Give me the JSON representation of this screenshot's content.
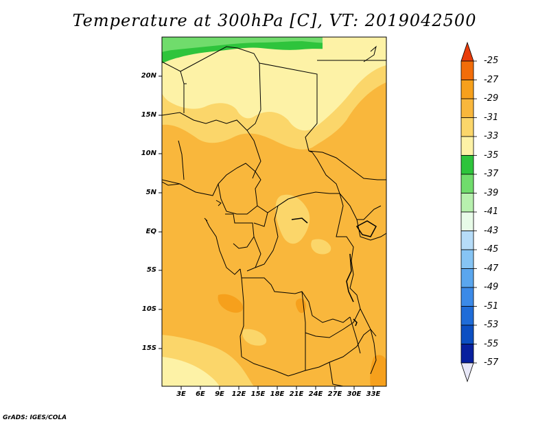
{
  "title": "Temperature at 300hPa [C], VT: 2019042500",
  "credit": "GrADS: IGES/COLA",
  "map": {
    "lat_labels": [
      "20N",
      "15N",
      "10N",
      "5N",
      "EQ",
      "5S",
      "10S",
      "15S"
    ],
    "lon_labels": [
      "3E",
      "6E",
      "9E",
      "12E",
      "15E",
      "18E",
      "21E",
      "24E",
      "27E",
      "30E",
      "33E"
    ]
  },
  "colorbar": {
    "labels": [
      "-25",
      "-27",
      "-29",
      "-31",
      "-33",
      "-35",
      "-37",
      "-39",
      "-41",
      "-43",
      "-45",
      "-47",
      "-49",
      "-51",
      "-53",
      "-55",
      "-57"
    ],
    "colors": [
      "#e83c0a",
      "#f26d0a",
      "#f6a01c",
      "#f9b73c",
      "#fbd66a",
      "#fdf2a6",
      "#2ec43c",
      "#70dc6c",
      "#b7f0ae",
      "#e8fbe8",
      "#b6dcf8",
      "#86c4f4",
      "#5aa6ee",
      "#3b8ae8",
      "#1f6cd8",
      "#0c4fc2",
      "#08209e",
      "#0a0a60",
      "#e8e8f8"
    ]
  },
  "colors": {
    "warm_dominant": "#f9b73c",
    "orange": "#f6a01c",
    "yellow": "#fbd66a",
    "pale_yellow": "#fdf2a6",
    "green": "#2ec43c",
    "light_green": "#70dc6c"
  }
}
